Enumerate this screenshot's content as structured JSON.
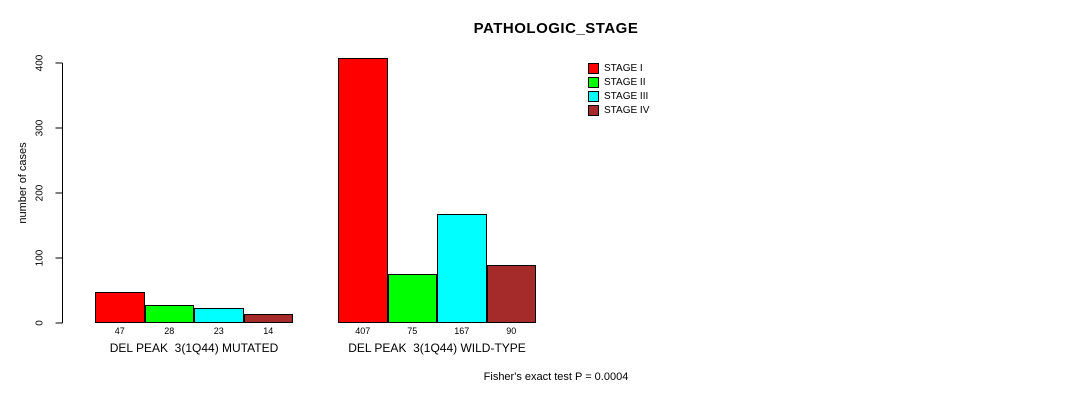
{
  "title": "PATHOLOGIC_STAGE",
  "ylabel": "number of cases",
  "annotation": "Fisher's exact test P = 0.0004",
  "colors": {
    "stage1": "#FF0000",
    "stage2": "#00FF00",
    "stage3": "#00FFFF",
    "stage4": "#A52A2A",
    "axis": "#000000",
    "background": "#FFFFFF"
  },
  "chart_data": {
    "type": "bar",
    "title": "PATHOLOGIC_STAGE",
    "xlabel": "",
    "ylabel": "number of cases",
    "ylim": [
      0,
      400
    ],
    "yticks": [
      0,
      100,
      200,
      300,
      400
    ],
    "grid": false,
    "legend_position": "top-right",
    "categories": [
      "DEL PEAK  3(1Q44) MUTATED",
      "DEL PEAK  3(1Q44) WILD-TYPE"
    ],
    "series": [
      {
        "name": "STAGE I",
        "color": "#FF0000",
        "values": [
          47,
          407
        ]
      },
      {
        "name": "STAGE II",
        "color": "#00FF00",
        "values": [
          28,
          75
        ]
      },
      {
        "name": "STAGE III",
        "color": "#00FFFF",
        "values": [
          23,
          167
        ]
      },
      {
        "name": "STAGE IV",
        "color": "#A52A2A",
        "values": [
          14,
          90
        ]
      }
    ],
    "bar_value_labels": [
      [
        47,
        28,
        23,
        14
      ],
      [
        407,
        75,
        167,
        90
      ]
    ],
    "annotation": "Fisher's exact test P = 0.0004"
  }
}
